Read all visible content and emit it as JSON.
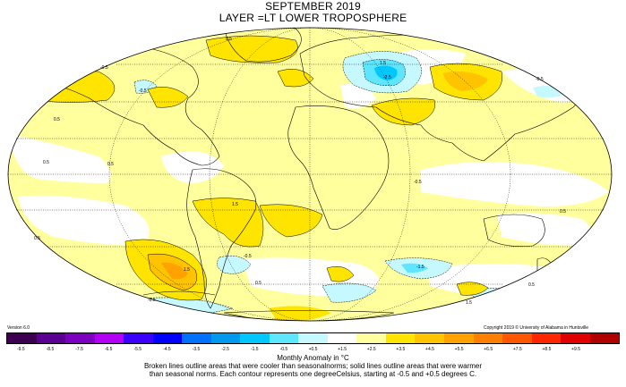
{
  "title": {
    "line1": "SEPTEMBER 2019",
    "line2": "LAYER =LT LOWER TROPOSPHERE"
  },
  "version": "Version 6.0",
  "copyright": "Copyright 2019 © University of Alabama in Huntsville",
  "colorbar": {
    "ticks": [
      "-9.5",
      "-8.5",
      "-7.5",
      "-6.5",
      "-5.5",
      "-4.5",
      "-3.5",
      "-2.5",
      "-1.5",
      "-0.5",
      "+0.5",
      "+1.5",
      "+2.5",
      "+3.5",
      "+4.5",
      "+5.5",
      "+6.5",
      "+7.5",
      "+8.5",
      "+9.5"
    ],
    "colors": [
      "#3d0050",
      "#5c0094",
      "#7b00c0",
      "#b300f5",
      "#3c00ff",
      "#0000ff",
      "#0070ff",
      "#0099ee",
      "#00c8ff",
      "#5fe6ff",
      "#c6f8ff",
      "#ffffff",
      "#ffff9e",
      "#ffe400",
      "#ffc300",
      "#ffa200",
      "#ff8000",
      "#ff5800",
      "#ff2600",
      "#e00000",
      "#b00000"
    ],
    "units": "Monthly Anomaly in °C"
  },
  "notes": {
    "line1": "Broken lines outline areas that were cooler than seasonalnorms; solid lines outline areas that were warmer",
    "line2": "than seasonal norms. Each contour represents one degreeCelsius, starting at -0.5 and +0.5 degrees C."
  },
  "contour_labels": [
    "0.5",
    "-0.5",
    "1.5",
    "-1.5",
    "-2.5",
    "2.5"
  ]
}
